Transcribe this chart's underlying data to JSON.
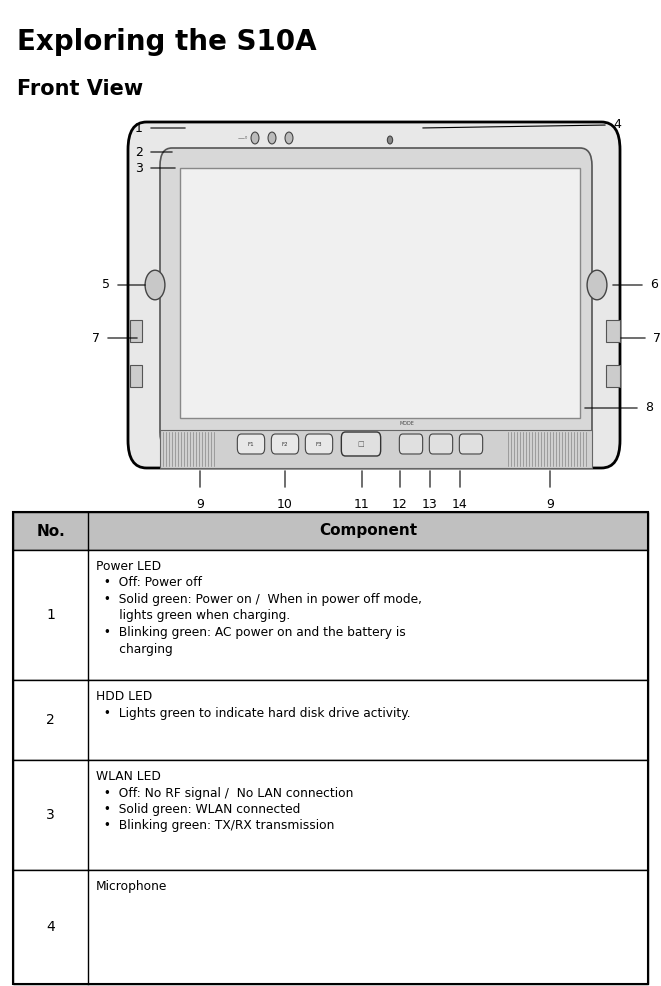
{
  "title": "Exploring the S10A",
  "subtitle": "Front View",
  "bg_color": "#ffffff",
  "table_header_bg": "#c0c0c0",
  "table_row_bg": "#ffffff",
  "table_border_color": "#000000",
  "table_data": [
    {
      "no": "1",
      "component_lines": [
        "Power LED",
        "  •  Off: Power off",
        "  •  Solid green: Power on /  When in power off mode,",
        "      lights green when charging.",
        "  •  Blinking green: AC power on and the battery is",
        "      charging"
      ]
    },
    {
      "no": "2",
      "component_lines": [
        "HDD LED",
        "  •  Lights green to indicate hard disk drive activity."
      ]
    },
    {
      "no": "3",
      "component_lines": [
        "WLAN LED",
        "  •  Off: No RF signal /  No LAN connection",
        "  •  Solid green: WLAN connected",
        "  •  Blinking green: TX/RX transmission"
      ]
    },
    {
      "no": "4",
      "component_lines": [
        "Microphone"
      ]
    }
  ]
}
